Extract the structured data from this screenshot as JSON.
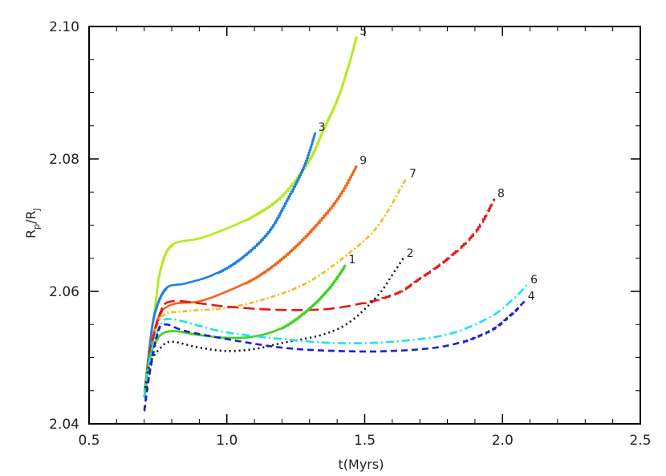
{
  "chart_data": {
    "type": "line",
    "title": "",
    "xlabel": "t(Myrs)",
    "ylabel_main": "R",
    "ylabel_sub1": "p",
    "ylabel_sep": "/R",
    "ylabel_sub2": "J",
    "xlim": [
      0.5,
      2.5
    ],
    "ylim": [
      2.04,
      2.1
    ],
    "xticks": [
      0.5,
      1.0,
      1.5,
      2.0,
      2.5
    ],
    "xtick_labels": [
      "0.5",
      "1.0",
      "1.5",
      "2.0",
      "2.5"
    ],
    "yticks": [
      2.04,
      2.06,
      2.08,
      2.1
    ],
    "ytick_labels": [
      "2.04",
      "2.06",
      "2.08",
      "2.10"
    ],
    "grid": false,
    "series": [
      {
        "label": "5",
        "color": "#b5ea1a",
        "dash": "",
        "step": true,
        "points": [
          [
            0.7,
            2.045
          ],
          [
            0.72,
            2.052
          ],
          [
            0.74,
            2.058
          ],
          [
            0.76,
            2.0635
          ],
          [
            0.8,
            2.067
          ],
          [
            0.9,
            2.068
          ],
          [
            1.0,
            2.0695
          ],
          [
            1.1,
            2.0715
          ],
          [
            1.2,
            2.0745
          ],
          [
            1.3,
            2.08
          ],
          [
            1.35,
            2.0845
          ],
          [
            1.4,
            2.089
          ],
          [
            1.44,
            2.094
          ],
          [
            1.47,
            2.0985
          ]
        ]
      },
      {
        "label": "3",
        "color": "#1e7fe6",
        "dash": "",
        "step": true,
        "points": [
          [
            0.7,
            2.044
          ],
          [
            0.72,
            2.052
          ],
          [
            0.74,
            2.057
          ],
          [
            0.78,
            2.0605
          ],
          [
            0.85,
            2.0612
          ],
          [
            0.95,
            2.0625
          ],
          [
            1.05,
            2.065
          ],
          [
            1.15,
            2.069
          ],
          [
            1.22,
            2.074
          ],
          [
            1.28,
            2.079
          ],
          [
            1.32,
            2.084
          ]
        ]
      },
      {
        "label": "9",
        "color": "#f26516",
        "dash": "",
        "step": true,
        "points": [
          [
            0.7,
            2.044
          ],
          [
            0.72,
            2.05
          ],
          [
            0.75,
            2.056
          ],
          [
            0.8,
            2.058
          ],
          [
            0.9,
            2.0585
          ],
          [
            1.0,
            2.06
          ],
          [
            1.1,
            2.062
          ],
          [
            1.2,
            2.065
          ],
          [
            1.3,
            2.069
          ],
          [
            1.4,
            2.074
          ],
          [
            1.47,
            2.079
          ]
        ]
      },
      {
        "label": "7",
        "color": "#f8b81a",
        "dash": "2,3,6,3",
        "step": false,
        "points": [
          [
            0.7,
            2.044
          ],
          [
            0.72,
            2.05
          ],
          [
            0.76,
            2.056
          ],
          [
            0.85,
            2.057
          ],
          [
            1.0,
            2.0575
          ],
          [
            1.15,
            2.059
          ],
          [
            1.3,
            2.0615
          ],
          [
            1.45,
            2.066
          ],
          [
            1.55,
            2.07
          ],
          [
            1.65,
            2.077
          ]
        ]
      },
      {
        "label": "8",
        "color": "#e11b1b",
        "dash": "14,6",
        "step": true,
        "points": [
          [
            0.7,
            2.044
          ],
          [
            0.72,
            2.051
          ],
          [
            0.76,
            2.057
          ],
          [
            0.8,
            2.0585
          ],
          [
            0.9,
            2.0582
          ],
          [
            1.0,
            2.0577
          ],
          [
            1.2,
            2.0572
          ],
          [
            1.4,
            2.0575
          ],
          [
            1.6,
            2.0595
          ],
          [
            1.7,
            2.062
          ],
          [
            1.8,
            2.065
          ],
          [
            1.9,
            2.069
          ],
          [
            1.97,
            2.074
          ]
        ]
      },
      {
        "label": "1",
        "color": "#36d61c",
        "dash": "",
        "step": true,
        "points": [
          [
            0.7,
            2.044
          ],
          [
            0.72,
            2.05
          ],
          [
            0.75,
            2.053
          ],
          [
            0.8,
            2.054
          ],
          [
            0.9,
            2.0534
          ],
          [
            1.0,
            2.053
          ],
          [
            1.1,
            2.0532
          ],
          [
            1.2,
            2.0545
          ],
          [
            1.3,
            2.0575
          ],
          [
            1.37,
            2.0605
          ],
          [
            1.43,
            2.064
          ]
        ]
      },
      {
        "label": "2",
        "color": "#111111",
        "dash": "2,4",
        "step": false,
        "points": [
          [
            0.7,
            2.044
          ],
          [
            0.72,
            2.049
          ],
          [
            0.76,
            2.0515
          ],
          [
            0.8,
            2.0524
          ],
          [
            0.9,
            2.0515
          ],
          [
            1.0,
            2.051
          ],
          [
            1.1,
            2.0513
          ],
          [
            1.2,
            2.0522
          ],
          [
            1.35,
            2.0535
          ],
          [
            1.45,
            2.0555
          ],
          [
            1.55,
            2.0595
          ],
          [
            1.6,
            2.0625
          ],
          [
            1.64,
            2.065
          ]
        ]
      },
      {
        "label": "6",
        "color": "#1ce0ef",
        "dash": "10,4,2,4",
        "step": false,
        "points": [
          [
            0.7,
            2.044
          ],
          [
            0.72,
            2.05
          ],
          [
            0.76,
            2.055
          ],
          [
            0.8,
            2.0558
          ],
          [
            0.9,
            2.0548
          ],
          [
            1.0,
            2.0538
          ],
          [
            1.2,
            2.0528
          ],
          [
            1.4,
            2.0522
          ],
          [
            1.6,
            2.0524
          ],
          [
            1.8,
            2.0535
          ],
          [
            1.95,
            2.056
          ],
          [
            2.03,
            2.0585
          ],
          [
            2.09,
            2.061
          ]
        ]
      },
      {
        "label": "4",
        "color": "#1f1fcc",
        "dash": "8,5",
        "step": true,
        "points": [
          [
            0.7,
            2.042
          ],
          [
            0.72,
            2.048
          ],
          [
            0.75,
            2.054
          ],
          [
            0.78,
            2.055
          ],
          [
            0.85,
            2.054
          ],
          [
            1.0,
            2.0528
          ],
          [
            1.2,
            2.0515
          ],
          [
            1.4,
            2.051
          ],
          [
            1.6,
            2.051
          ],
          [
            1.8,
            2.0518
          ],
          [
            1.95,
            2.054
          ],
          [
            2.03,
            2.0565
          ],
          [
            2.08,
            2.0585
          ]
        ]
      }
    ]
  }
}
